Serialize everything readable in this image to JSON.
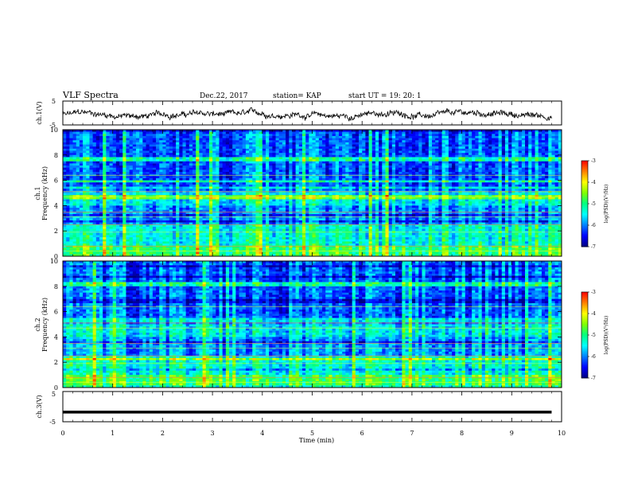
{
  "header": {
    "title": "VLF Spectra",
    "date": "Dec.22, 2017",
    "station": "station= KAP",
    "start_ut": "start  UT =   19: 20: 1"
  },
  "chart_data": [
    {
      "type": "line",
      "name": "ch1-waveform",
      "ylabel": "ch.1(V)",
      "ylim": [
        -5,
        5
      ],
      "yticks": [
        "5",
        "-5"
      ],
      "xlim": [
        0,
        10
      ],
      "trace_x_max": 9.8,
      "mean": -0.8,
      "amplitude": 1.2
    },
    {
      "type": "heatmap",
      "name": "ch1-spectrogram",
      "ylabel": "ch.1\nFrequency  (kHz)",
      "ylim": [
        0,
        10
      ],
      "yticks": [
        "0",
        "2",
        "4",
        "6",
        "8",
        "10"
      ],
      "xlim": [
        0,
        10
      ],
      "colorbar": {
        "label": "log(PSD)(V²/Hz)",
        "range": [
          -7,
          -3
        ],
        "ticks": [
          "-3",
          "-4",
          "-5",
          "-6",
          "-7"
        ]
      }
    },
    {
      "type": "heatmap",
      "name": "ch2-spectrogram",
      "ylabel": "ch.2\nFrequency  (kHz)",
      "ylim": [
        0,
        10
      ],
      "yticks": [
        "0",
        "2",
        "4",
        "6",
        "8",
        "10"
      ],
      "xlim": [
        0,
        10
      ],
      "colorbar": {
        "label": "log(PSD)(V²/Hz)",
        "range": [
          -7,
          -3
        ],
        "ticks": [
          "-3",
          "-4",
          "-5",
          "-6",
          "-7"
        ]
      }
    },
    {
      "type": "line",
      "name": "ch3-waveform",
      "ylabel": "ch.3(V)",
      "ylim": [
        -5,
        5
      ],
      "yticks": [
        "5",
        "-5"
      ],
      "xlim": [
        0,
        10
      ],
      "constant_value": -1.8,
      "trace_x_max": 9.8
    }
  ],
  "xaxis": {
    "label": "Time  (min)",
    "ticks": [
      "0",
      "1",
      "2",
      "3",
      "4",
      "5",
      "6",
      "7",
      "8",
      "9",
      "10"
    ]
  },
  "colormap": [
    "#000080",
    "#0000ff",
    "#0080ff",
    "#00ffff",
    "#00ff80",
    "#80ff00",
    "#ffff00",
    "#ff8000",
    "#ff0000",
    "#ffffff"
  ]
}
